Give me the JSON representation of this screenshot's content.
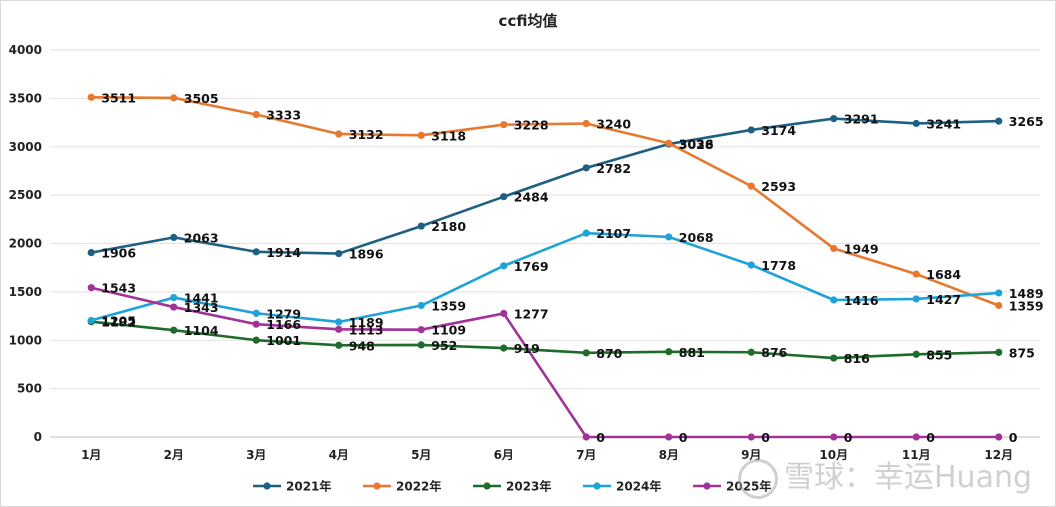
{
  "chart_data": {
    "type": "line",
    "title": "ccfi均值",
    "xlabel": "",
    "ylabel": "",
    "ylim": [
      0,
      4000
    ],
    "yticks": [
      0,
      500,
      1000,
      1500,
      2000,
      2500,
      3000,
      3500,
      4000
    ],
    "grid": true,
    "legend_position": "bottom",
    "categories": [
      "1月",
      "2月",
      "3月",
      "4月",
      "5月",
      "6月",
      "7月",
      "8月",
      "9月",
      "10月",
      "11月",
      "12月"
    ],
    "series": [
      {
        "name": "2021年",
        "color": "#1f5f82",
        "values": [
          1906,
          2063,
          1914,
          1896,
          2180,
          2484,
          2782,
          3028,
          3174,
          3291,
          3241,
          3265
        ]
      },
      {
        "name": "2022年",
        "color": "#e8782f",
        "values": [
          3511,
          3505,
          3333,
          3132,
          3118,
          3228,
          3240,
          3036,
          2593,
          1949,
          1684,
          1359
        ]
      },
      {
        "name": "2023年",
        "color": "#1e6b2a",
        "values": [
          1192,
          1104,
          1001,
          948,
          952,
          919,
          870,
          881,
          876,
          816,
          855,
          875
        ]
      },
      {
        "name": "2024年",
        "color": "#1ea3d9",
        "values": [
          1205,
          1441,
          1279,
          1189,
          1359,
          1769,
          2107,
          2068,
          1778,
          1416,
          1427,
          1489
        ]
      },
      {
        "name": "2025年",
        "color": "#a03298",
        "values": [
          1543,
          1343,
          1166,
          1113,
          1109,
          1277,
          0,
          0,
          0,
          0,
          0,
          0
        ]
      }
    ]
  },
  "watermark": {
    "text": "雪球：幸运Huang"
  }
}
